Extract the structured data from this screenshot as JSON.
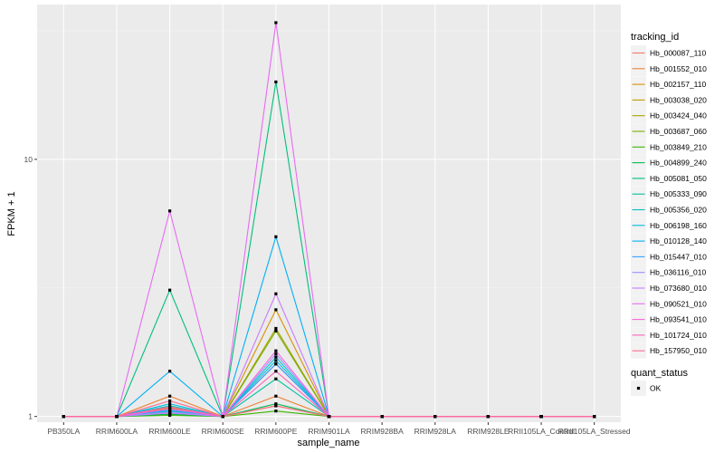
{
  "chart_data": {
    "type": "line",
    "xlabel": "sample_name",
    "ylabel": "FPKM + 1",
    "y_scale": "log10",
    "ylim": [
      0.95,
      40
    ],
    "y_ticks": [
      1,
      10
    ],
    "y_tick_labels": [
      "1",
      "10"
    ],
    "grid": true,
    "legend_placement": "right",
    "categories": [
      "PB350LA",
      "RRIM600LA",
      "RRIM600LE",
      "RRIM600SE",
      "RRIM600PE",
      "RRIM901LA",
      "RRIM928BA",
      "RRIM928LA",
      "RRIM928LE",
      "RRII105LA_Control",
      "RRII105LA_Stressed"
    ],
    "legend_title": "tracking_id",
    "series": [
      {
        "name": "Hb_000087_110",
        "color": "#F8766D",
        "values": [
          1,
          1,
          1.08,
          1,
          1.6,
          1,
          1,
          1,
          1,
          1,
          1
        ]
      },
      {
        "name": "Hb_001552_010",
        "color": "#EB8335",
        "values": [
          1,
          1,
          1.2,
          1,
          1.2,
          1,
          1,
          1,
          1,
          1,
          1
        ]
      },
      {
        "name": "Hb_002157_110",
        "color": "#D89000",
        "values": [
          1,
          1,
          1.05,
          1,
          2.6,
          1,
          1,
          1,
          1,
          1,
          1
        ]
      },
      {
        "name": "Hb_003038_020",
        "color": "#C09B00",
        "values": [
          1,
          1,
          1.08,
          1,
          1.1,
          1,
          1,
          1,
          1,
          1,
          1
        ]
      },
      {
        "name": "Hb_003424_040",
        "color": "#A3A500",
        "values": [
          1,
          1,
          1.03,
          1,
          2.2,
          1,
          1,
          1,
          1,
          1,
          1
        ]
      },
      {
        "name": "Hb_003687_060",
        "color": "#7CAE00",
        "values": [
          1,
          1,
          1.02,
          1,
          2.15,
          1,
          1,
          1,
          1,
          1,
          1
        ]
      },
      {
        "name": "Hb_003849_210",
        "color": "#39B600",
        "values": [
          1,
          1,
          1.01,
          1,
          1.05,
          1,
          1,
          1,
          1,
          1,
          1
        ]
      },
      {
        "name": "Hb_004899_240",
        "color": "#00BB4E",
        "values": [
          1,
          1,
          1.02,
          1,
          1.12,
          1,
          1,
          1,
          1,
          1,
          1
        ]
      },
      {
        "name": "Hb_005081_050",
        "color": "#00BF7D",
        "values": [
          1,
          1,
          3.1,
          1,
          20,
          1,
          1,
          1,
          1,
          1,
          1
        ]
      },
      {
        "name": "Hb_005333_090",
        "color": "#00C1A3",
        "values": [
          1,
          1,
          1.1,
          1,
          1.4,
          1,
          1,
          1,
          1,
          1,
          1
        ]
      },
      {
        "name": "Hb_005356_020",
        "color": "#00BFC4",
        "values": [
          1,
          1,
          1.05,
          1,
          1.7,
          1,
          1,
          1,
          1,
          1,
          1
        ]
      },
      {
        "name": "Hb_006198_160",
        "color": "#00BAE0",
        "values": [
          1,
          1,
          1.12,
          1,
          1.65,
          1,
          1,
          1,
          1,
          1,
          1
        ]
      },
      {
        "name": "Hb_010128_140",
        "color": "#00B0F6",
        "values": [
          1,
          1,
          1.5,
          1,
          5.0,
          1,
          1,
          1,
          1,
          1,
          1
        ]
      },
      {
        "name": "Hb_015447_010",
        "color": "#35A2FF",
        "values": [
          1,
          1,
          1.06,
          1,
          1.6,
          1,
          1,
          1,
          1,
          1,
          1
        ]
      },
      {
        "name": "Hb_036116_010",
        "color": "#9590FF",
        "values": [
          1,
          1,
          1.04,
          1,
          1.75,
          1,
          1,
          1,
          1,
          1,
          1
        ]
      },
      {
        "name": "Hb_073680_010",
        "color": "#C77CFF",
        "values": [
          1,
          1,
          1.03,
          1,
          3.0,
          1,
          1,
          1,
          1,
          1,
          1
        ]
      },
      {
        "name": "Hb_090521_010",
        "color": "#E76BF3",
        "values": [
          1,
          1,
          6.3,
          1,
          34,
          1,
          1,
          1,
          1,
          1,
          1
        ]
      },
      {
        "name": "Hb_093541_010",
        "color": "#FA62DB",
        "values": [
          1,
          1,
          1.07,
          1,
          1.8,
          1,
          1,
          1,
          1,
          1,
          1
        ]
      },
      {
        "name": "Hb_101724_010",
        "color": "#FF62BC",
        "values": [
          1,
          1,
          1.09,
          1,
          1.5,
          1,
          1,
          1,
          1,
          1,
          1
        ]
      },
      {
        "name": "Hb_157950_010",
        "color": "#FF6C91",
        "values": [
          1,
          1,
          1.15,
          1,
          1.1,
          1,
          1,
          1,
          1,
          1,
          1
        ]
      }
    ],
    "point_legend": {
      "title": "quant_status",
      "items": [
        "OK"
      ]
    }
  }
}
